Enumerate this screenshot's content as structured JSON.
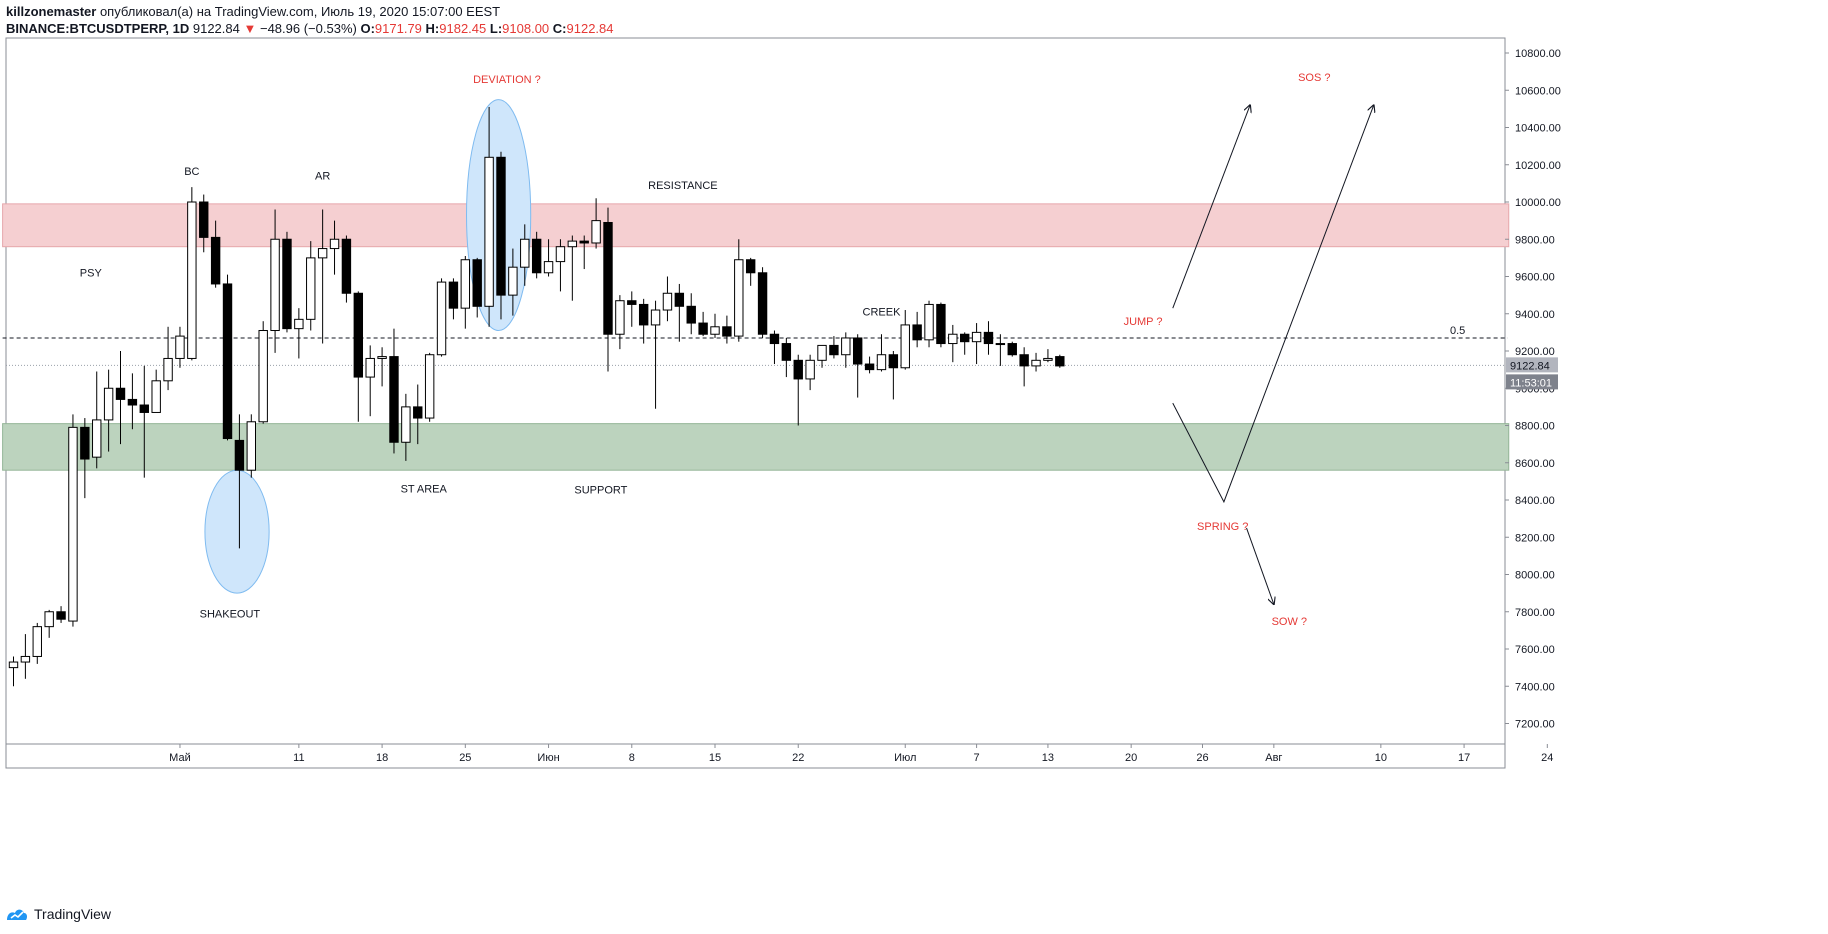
{
  "header": {
    "author": "killzonemaster",
    "published_text": "опубликовал(а) на TradingView.com, Июль 19, 2020 15:07:00 EEST",
    "symbol": "BINANCE:BTCUSDTPERP, 1D",
    "last_price": "9122.84",
    "change": "−48.96 (−0.53%)",
    "o_label": "O:",
    "o_value": "9171.79",
    "h_label": "H:",
    "h_value": "9182.45",
    "l_label": "L:",
    "l_value": "9108.00",
    "c_label": "C:",
    "c_value": "9122.84"
  },
  "footer": {
    "brand": "TradingView"
  },
  "colors": {
    "resistance_zone": "#f5cfd1",
    "support_zone": "#bcd3be",
    "ellipse": "#cfe6fb",
    "annotation_red": "#e53935",
    "candle_up": "#ffffff",
    "candle_down": "#000000"
  },
  "chart_data": {
    "type": "candlestick",
    "title": "BINANCE:BTCUSDTPERP, 1D",
    "y_axis": {
      "range": [
        7080,
        10900
      ],
      "ticks": [
        "10800.00",
        "10600.00",
        "10400.00",
        "10200.00",
        "10000.00",
        "9800.00",
        "9600.00",
        "9400.00",
        "9200.00",
        "9000.00",
        "8800.00",
        "8600.00",
        "8400.00",
        "8200.00",
        "8000.00",
        "7800.00",
        "7600.00",
        "7400.00",
        "7200.00"
      ],
      "tick_values": [
        10800,
        10600,
        10400,
        10200,
        10000,
        9800,
        9600,
        9400,
        9200,
        9000,
        8800,
        8600,
        8400,
        8200,
        8000,
        7800,
        7600,
        7400,
        7200
      ]
    },
    "x_axis": {
      "labels": [
        {
          "label": "Май",
          "day": 14
        },
        {
          "label": "11",
          "day": 24
        },
        {
          "label": "18",
          "day": 31
        },
        {
          "label": "25",
          "day": 38
        },
        {
          "label": "Июн",
          "day": 45
        },
        {
          "label": "8",
          "day": 52
        },
        {
          "label": "15",
          "day": 59
        },
        {
          "label": "22",
          "day": 66
        },
        {
          "label": "Июл",
          "day": 75
        },
        {
          "label": "7",
          "day": 81
        },
        {
          "label": "13",
          "day": 87
        },
        {
          "label": "20",
          "day": 94
        },
        {
          "label": "26",
          "day": 100
        },
        {
          "label": "Авг",
          "day": 106
        },
        {
          "label": "10",
          "day": 115
        },
        {
          "label": "17",
          "day": 122
        },
        {
          "label": "24",
          "day": 129
        }
      ],
      "day_range": [
        0,
        132
      ]
    },
    "candles": [
      [
        7500,
        7560,
        7400,
        7530
      ],
      [
        7530,
        7680,
        7440,
        7560
      ],
      [
        7560,
        7740,
        7520,
        7720
      ],
      [
        7720,
        7810,
        7660,
        7800
      ],
      [
        7800,
        7830,
        7740,
        7760
      ],
      [
        7750,
        8860,
        7720,
        8790
      ],
      [
        8790,
        8840,
        8410,
        8620
      ],
      [
        8630,
        9090,
        8570,
        8830
      ],
      [
        8830,
        9100,
        8660,
        9000
      ],
      [
        9000,
        9200,
        8700,
        8940
      ],
      [
        8940,
        9080,
        8780,
        8910
      ],
      [
        8910,
        9120,
        8520,
        8870
      ],
      [
        8870,
        9100,
        8870,
        9040
      ],
      [
        9040,
        9330,
        8990,
        9160
      ],
      [
        9160,
        9330,
        9110,
        9280
      ],
      [
        9160,
        10080,
        9150,
        10000
      ],
      [
        10000,
        10040,
        9730,
        9810
      ],
      [
        9810,
        9900,
        9540,
        9560
      ],
      [
        9560,
        9610,
        8720,
        8730
      ],
      [
        8720,
        8860,
        8140,
        8560
      ],
      [
        8560,
        8860,
        8520,
        8820
      ],
      [
        8820,
        9360,
        8810,
        9310
      ],
      [
        9310,
        9960,
        9190,
        9800
      ],
      [
        9800,
        9840,
        9300,
        9320
      ],
      [
        9320,
        9430,
        9160,
        9370
      ],
      [
        9370,
        9790,
        9310,
        9700
      ],
      [
        9700,
        9960,
        9240,
        9750
      ],
      [
        9750,
        9900,
        9610,
        9800
      ],
      [
        9800,
        9820,
        9460,
        9510
      ],
      [
        9510,
        9520,
        8820,
        9060
      ],
      [
        9060,
        9230,
        8850,
        9160
      ],
      [
        9160,
        9220,
        9010,
        9170
      ],
      [
        9170,
        9320,
        8650,
        8710
      ],
      [
        8710,
        8970,
        8610,
        8900
      ],
      [
        8900,
        9020,
        8700,
        8840
      ],
      [
        8840,
        9190,
        8820,
        9180
      ],
      [
        9180,
        9590,
        9170,
        9570
      ],
      [
        9570,
        9590,
        9370,
        9430
      ],
      [
        9430,
        9710,
        9320,
        9690
      ],
      [
        9690,
        9700,
        9380,
        9440
      ],
      [
        9440,
        10510,
        9330,
        10240
      ],
      [
        10240,
        10270,
        9370,
        9500
      ],
      [
        9500,
        9750,
        9390,
        9650
      ],
      [
        9650,
        9880,
        9550,
        9800
      ],
      [
        9800,
        9840,
        9590,
        9620
      ],
      [
        9620,
        9800,
        9600,
        9680
      ],
      [
        9680,
        9800,
        9520,
        9760
      ],
      [
        9760,
        9820,
        9470,
        9790
      ],
      [
        9790,
        9820,
        9640,
        9780
      ],
      [
        9780,
        10020,
        9750,
        9900
      ],
      [
        9890,
        9970,
        9090,
        9290
      ],
      [
        9290,
        9500,
        9210,
        9470
      ],
      [
        9470,
        9520,
        9330,
        9450
      ],
      [
        9450,
        9480,
        9240,
        9340
      ],
      [
        9340,
        9470,
        8890,
        9420
      ],
      [
        9420,
        9600,
        9360,
        9510
      ],
      [
        9510,
        9560,
        9250,
        9440
      ],
      [
        9440,
        9510,
        9290,
        9350
      ],
      [
        9350,
        9410,
        9280,
        9290
      ],
      [
        9290,
        9400,
        9270,
        9330
      ],
      [
        9330,
        9390,
        9240,
        9280
      ],
      [
        9280,
        9800,
        9250,
        9690
      ],
      [
        9690,
        9700,
        9550,
        9620
      ],
      [
        9620,
        9650,
        9270,
        9290
      ],
      [
        9290,
        9310,
        9130,
        9240
      ],
      [
        9240,
        9270,
        9060,
        9150
      ],
      [
        9150,
        9180,
        8800,
        9050
      ],
      [
        9050,
        9180,
        8990,
        9150
      ],
      [
        9150,
        9230,
        9110,
        9230
      ],
      [
        9230,
        9280,
        9160,
        9180
      ],
      [
        9180,
        9300,
        9110,
        9270
      ],
      [
        9270,
        9290,
        8950,
        9130
      ],
      [
        9130,
        9170,
        9080,
        9100
      ],
      [
        9100,
        9290,
        9090,
        9180
      ],
      [
        9180,
        9200,
        8940,
        9110
      ],
      [
        9110,
        9420,
        9100,
        9340
      ],
      [
        9340,
        9410,
        9220,
        9260
      ],
      [
        9260,
        9470,
        9220,
        9450
      ],
      [
        9450,
        9460,
        9220,
        9240
      ],
      [
        9240,
        9340,
        9140,
        9290
      ],
      [
        9290,
        9300,
        9180,
        9250
      ],
      [
        9250,
        9350,
        9130,
        9300
      ],
      [
        9300,
        9360,
        9180,
        9240
      ],
      [
        9240,
        9290,
        9120,
        9240
      ],
      [
        9240,
        9250,
        9170,
        9180
      ],
      [
        9180,
        9220,
        9010,
        9120
      ],
      [
        9120,
        9190,
        9090,
        9150
      ],
      [
        9150,
        9210,
        9140,
        9160
      ],
      [
        9170,
        9180,
        9110,
        9120
      ]
    ],
    "zones": [
      {
        "name": "resistance",
        "top": 9990,
        "bottom": 9760,
        "start_day": -1,
        "end_day": 125
      },
      {
        "name": "support",
        "top": 8810,
        "bottom": 8560,
        "start_day": -1,
        "end_day": 125
      }
    ],
    "level_05": {
      "price": 9270,
      "label": "0.5",
      "start_day": -1,
      "end_day": 125
    },
    "ellipses": [
      {
        "name": "deviation-ellipse",
        "center_day": 40.8,
        "center_price": 9930,
        "rx_days": 2.7,
        "ry_price": 620
      },
      {
        "name": "shakeout-ellipse",
        "center_day": 18.8,
        "center_price": 8230,
        "rx_days": 2.7,
        "ry_price": 330
      }
    ],
    "labels": [
      {
        "name": "psy",
        "text": "PSY",
        "day": 6.5,
        "price": 9600,
        "color": "dark"
      },
      {
        "name": "bc",
        "text": "BC",
        "day": 15.0,
        "price": 10145,
        "color": "dark"
      },
      {
        "name": "ar",
        "text": "AR",
        "day": 26.0,
        "price": 10120,
        "color": "dark"
      },
      {
        "name": "shakeout",
        "text": "SHAKEOUT",
        "day": 18.2,
        "price": 7770,
        "color": "dark"
      },
      {
        "name": "st-area",
        "text": "ST AREA",
        "day": 34.5,
        "price": 8440,
        "color": "dark"
      },
      {
        "name": "deviation",
        "text": "DEVIATION ?",
        "day": 41.5,
        "price": 10640,
        "color": "red"
      },
      {
        "name": "resistance",
        "text": "RESISTANCE",
        "day": 56.3,
        "price": 10070,
        "color": "dark"
      },
      {
        "name": "support",
        "text": "SUPPORT",
        "day": 49.4,
        "price": 8435,
        "color": "dark"
      },
      {
        "name": "creek",
        "text": "CREEK",
        "day": 73.0,
        "price": 9390,
        "color": "dark"
      },
      {
        "name": "jump",
        "text": "JUMP ?",
        "day": 95.0,
        "price": 9340,
        "color": "red"
      },
      {
        "name": "spring",
        "text": "SPRING ?",
        "day": 101.7,
        "price": 8240,
        "color": "red"
      },
      {
        "name": "sos",
        "text": "SOS ?",
        "day": 109.4,
        "price": 10650,
        "color": "red"
      },
      {
        "name": "sow",
        "text": "SOW ?",
        "day": 107.3,
        "price": 7730,
        "color": "red"
      }
    ],
    "projections": [
      {
        "name": "jump-arrow",
        "points": [
          [
            97.5,
            9430
          ],
          [
            104.0,
            10520
          ]
        ]
      },
      {
        "name": "spring-sos-arrow",
        "points": [
          [
            97.5,
            8920
          ],
          [
            101.8,
            8390
          ],
          [
            114.4,
            10520
          ]
        ]
      },
      {
        "name": "sow-arrow",
        "points": [
          [
            103.7,
            8250
          ],
          [
            106.0,
            7840
          ]
        ]
      }
    ],
    "current_price": {
      "price": 9122.84,
      "label": "9122.84",
      "timer": "11:53:01"
    }
  }
}
